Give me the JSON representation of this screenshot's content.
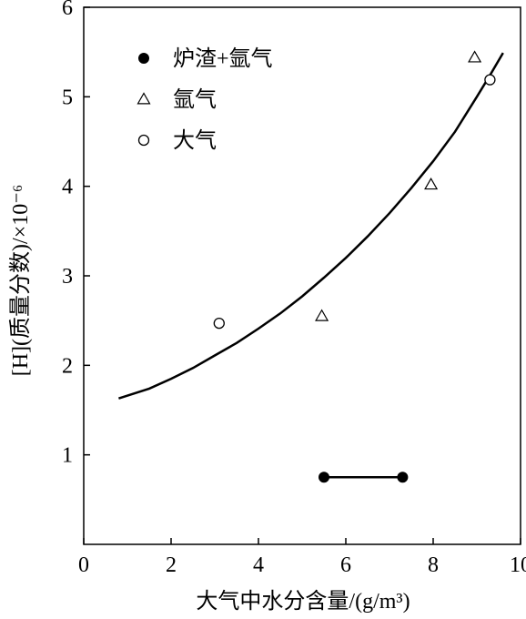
{
  "chart_data": {
    "type": "scatter",
    "xlabel": "大气中水分含量/(g/m³)",
    "ylabel": "[H](质量分数)/×10⁻⁶",
    "xlim": [
      0,
      10
    ],
    "ylim": [
      0,
      6
    ],
    "x_ticks": [
      "0",
      "2",
      "4",
      "6",
      "8",
      "10"
    ],
    "y_ticks": [
      "1",
      "2",
      "3",
      "4",
      "5",
      "6"
    ],
    "legend_position": "top-left",
    "series": [
      {
        "name": "炉渣+氩气",
        "marker": "filled-circle",
        "points": [
          [
            5.5,
            0.75
          ],
          [
            7.3,
            0.75
          ]
        ],
        "connected": true
      },
      {
        "name": "氩气",
        "marker": "open-triangle",
        "points": [
          [
            5.45,
            2.55
          ],
          [
            7.95,
            4.02
          ],
          [
            8.95,
            5.44
          ]
        ]
      },
      {
        "name": "大气",
        "marker": "open-circle",
        "points": [
          [
            3.1,
            2.47
          ],
          [
            9.3,
            5.19
          ]
        ]
      }
    ],
    "fit_curve": {
      "type": "exponential",
      "x": [
        0.8,
        1.5,
        2.0,
        2.5,
        3.0,
        3.5,
        4.0,
        4.5,
        5.0,
        5.5,
        6.0,
        6.5,
        7.0,
        7.5,
        8.0,
        8.5,
        9.0,
        9.3,
        9.6
      ],
      "y": [
        1.63,
        1.74,
        1.85,
        1.97,
        2.11,
        2.25,
        2.41,
        2.58,
        2.77,
        2.98,
        3.2,
        3.44,
        3.7,
        3.98,
        4.28,
        4.61,
        5.0,
        5.24,
        5.49
      ]
    }
  }
}
